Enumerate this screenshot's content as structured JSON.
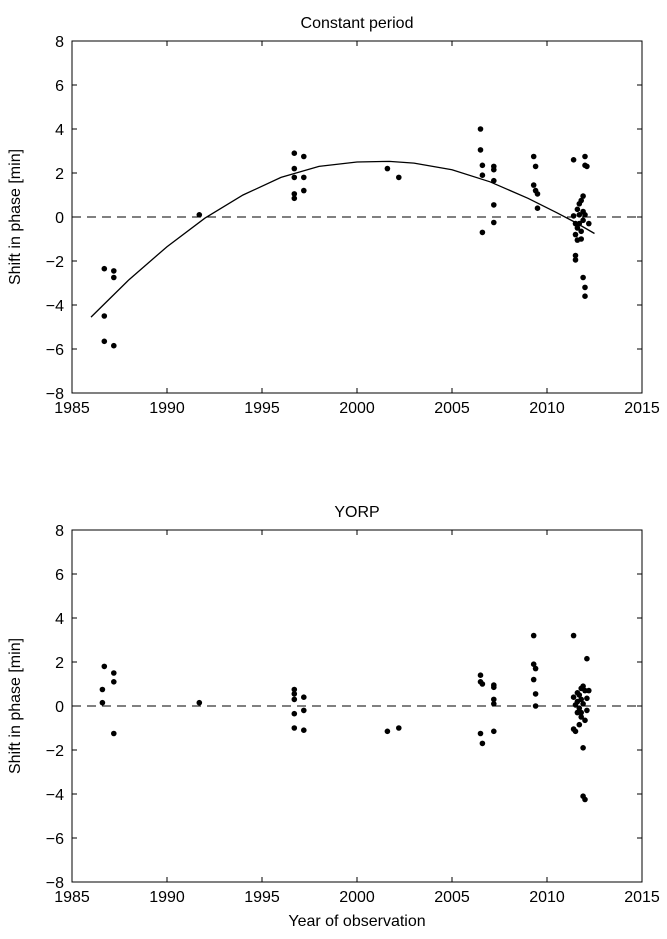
{
  "chart_data": [
    {
      "type": "scatter",
      "title": "Constant period",
      "xlabel": "",
      "ylabel": "Shift in phase [min]",
      "xlim": [
        1985,
        2015
      ],
      "ylim": [
        -8,
        8
      ],
      "xticks": [
        1985,
        1990,
        1995,
        2000,
        2005,
        2010,
        2015
      ],
      "yticks": [
        -8,
        -6,
        -4,
        -2,
        0,
        2,
        4,
        6,
        8
      ],
      "xtick_labels": [
        "1985",
        "1990",
        "1995",
        "2000",
        "2005",
        "2010",
        "2015"
      ],
      "ytick_labels": [
        "−8",
        "−6",
        "−4",
        "−2",
        "0",
        "2",
        "4",
        "6",
        "8"
      ],
      "zero_line": 0,
      "grid": false,
      "points": [
        [
          1986.7,
          -2.35
        ],
        [
          1986.7,
          -4.5
        ],
        [
          1986.7,
          -5.65
        ],
        [
          1987.2,
          -2.45
        ],
        [
          1987.2,
          -2.75
        ],
        [
          1987.2,
          -5.85
        ],
        [
          1991.7,
          0.1
        ],
        [
          1996.7,
          2.9
        ],
        [
          1996.7,
          2.2
        ],
        [
          1996.7,
          1.8
        ],
        [
          1996.7,
          1.05
        ],
        [
          1996.7,
          0.85
        ],
        [
          1997.2,
          2.75
        ],
        [
          1997.2,
          1.8
        ],
        [
          1997.2,
          1.2
        ],
        [
          2001.6,
          2.2
        ],
        [
          2002.2,
          1.8
        ],
        [
          2006.5,
          4.0
        ],
        [
          2006.5,
          3.05
        ],
        [
          2006.6,
          2.35
        ],
        [
          2006.6,
          1.9
        ],
        [
          2006.6,
          -0.7
        ],
        [
          2007.2,
          2.3
        ],
        [
          2007.2,
          2.15
        ],
        [
          2007.2,
          1.65
        ],
        [
          2007.2,
          0.55
        ],
        [
          2007.2,
          -0.25
        ],
        [
          2009.3,
          2.75
        ],
        [
          2009.3,
          1.45
        ],
        [
          2009.4,
          2.3
        ],
        [
          2009.4,
          1.2
        ],
        [
          2009.5,
          1.05
        ],
        [
          2009.5,
          0.4
        ],
        [
          2011.4,
          2.6
        ],
        [
          2011.4,
          0.05
        ],
        [
          2011.5,
          -0.3
        ],
        [
          2011.5,
          -0.8
        ],
        [
          2011.5,
          -1.75
        ],
        [
          2011.5,
          -1.95
        ],
        [
          2011.6,
          0.35
        ],
        [
          2011.6,
          -0.5
        ],
        [
          2011.6,
          -1.05
        ],
        [
          2011.7,
          0.6
        ],
        [
          2011.7,
          0.1
        ],
        [
          2011.7,
          -0.3
        ],
        [
          2011.8,
          0.75
        ],
        [
          2011.8,
          -0.65
        ],
        [
          2011.8,
          -1.0
        ],
        [
          2011.9,
          0.25
        ],
        [
          2011.9,
          -0.15
        ],
        [
          2011.9,
          0.95
        ],
        [
          2011.9,
          -2.75
        ],
        [
          2012.0,
          2.75
        ],
        [
          2012.0,
          2.35
        ],
        [
          2012.0,
          0.1
        ],
        [
          2012.0,
          -3.2
        ],
        [
          2012.0,
          -3.6
        ],
        [
          2012.1,
          2.3
        ],
        [
          2012.2,
          -0.3
        ]
      ],
      "fit_curve": {
        "x": [
          1986.0,
          1988.0,
          1990.0,
          1992.0,
          1994.0,
          1996.0,
          1998.0,
          2000.0,
          2001.7,
          2003.0,
          2005.0,
          2007.0,
          2009.0,
          2010.5,
          2011.5,
          2012.5
        ],
        "y": [
          -4.55,
          -2.85,
          -1.35,
          -0.05,
          1.0,
          1.8,
          2.3,
          2.5,
          2.53,
          2.45,
          2.15,
          1.6,
          0.85,
          0.2,
          -0.25,
          -0.75
        ]
      }
    },
    {
      "type": "scatter",
      "title": "YORP",
      "xlabel": "Year of observation",
      "ylabel": "Shift in phase [min]",
      "xlim": [
        1985,
        2015
      ],
      "ylim": [
        -8,
        8
      ],
      "xticks": [
        1985,
        1990,
        1995,
        2000,
        2005,
        2010,
        2015
      ],
      "yticks": [
        -8,
        -6,
        -4,
        -2,
        0,
        2,
        4,
        6,
        8
      ],
      "xtick_labels": [
        "1985",
        "1990",
        "1995",
        "2000",
        "2005",
        "2010",
        "2015"
      ],
      "ytick_labels": [
        "−8",
        "−6",
        "−4",
        "−2",
        "0",
        "2",
        "4",
        "6",
        "8"
      ],
      "zero_line": 0,
      "grid": false,
      "points": [
        [
          1986.7,
          1.8
        ],
        [
          1986.6,
          0.75
        ],
        [
          1986.6,
          0.15
        ],
        [
          1987.2,
          1.5
        ],
        [
          1987.2,
          1.1
        ],
        [
          1987.2,
          -1.25
        ],
        [
          1991.7,
          0.15
        ],
        [
          1996.7,
          0.75
        ],
        [
          1996.7,
          0.55
        ],
        [
          1996.7,
          0.3
        ],
        [
          1996.7,
          -0.35
        ],
        [
          1996.7,
          -1.0
        ],
        [
          1997.2,
          0.4
        ],
        [
          1997.2,
          -0.2
        ],
        [
          1997.2,
          -1.1
        ],
        [
          2001.6,
          -1.15
        ],
        [
          2002.2,
          -1.0
        ],
        [
          2006.5,
          1.4
        ],
        [
          2006.5,
          1.1
        ],
        [
          2006.6,
          1.0
        ],
        [
          2006.5,
          -1.25
        ],
        [
          2006.6,
          -1.7
        ],
        [
          2007.2,
          0.95
        ],
        [
          2007.2,
          0.85
        ],
        [
          2007.2,
          0.3
        ],
        [
          2007.2,
          0.1
        ],
        [
          2007.2,
          -1.15
        ],
        [
          2009.3,
          3.2
        ],
        [
          2009.3,
          1.9
        ],
        [
          2009.3,
          1.2
        ],
        [
          2009.4,
          1.7
        ],
        [
          2009.4,
          0.55
        ],
        [
          2009.4,
          0.0
        ],
        [
          2011.4,
          3.2
        ],
        [
          2011.4,
          0.4
        ],
        [
          2011.4,
          -1.05
        ],
        [
          2011.5,
          -1.15
        ],
        [
          2011.5,
          0.05
        ],
        [
          2011.6,
          0.6
        ],
        [
          2011.6,
          0.2
        ],
        [
          2011.6,
          -0.3
        ],
        [
          2011.7,
          0.5
        ],
        [
          2011.7,
          -0.1
        ],
        [
          2011.7,
          -0.85
        ],
        [
          2011.8,
          0.8
        ],
        [
          2011.8,
          0.3
        ],
        [
          2011.8,
          -0.5
        ],
        [
          2011.9,
          0.9
        ],
        [
          2011.9,
          0.1
        ],
        [
          2011.9,
          -1.9
        ],
        [
          2011.9,
          -4.1
        ],
        [
          2012.0,
          0.7
        ],
        [
          2012.0,
          -0.65
        ],
        [
          2012.0,
          -4.25
        ],
        [
          2012.1,
          2.15
        ],
        [
          2012.1,
          0.35
        ],
        [
          2012.2,
          0.7
        ],
        [
          2012.1,
          -0.2
        ],
        [
          2011.8,
          -0.3
        ]
      ]
    }
  ]
}
